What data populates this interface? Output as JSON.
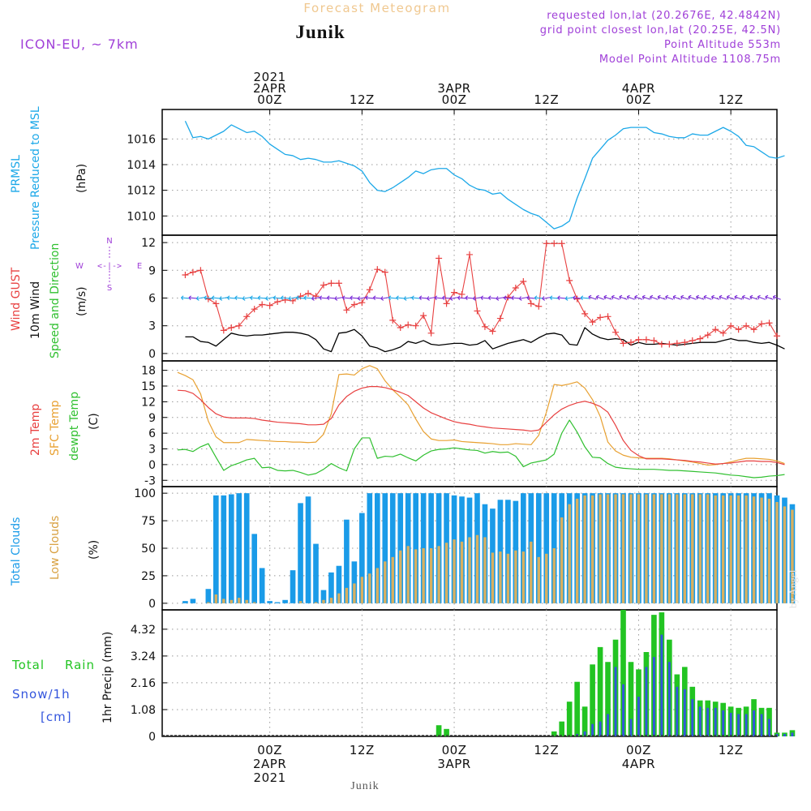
{
  "header": {
    "title": "Forecast Meteogram",
    "location": "Junik",
    "model": "ICON-EU, ~ 7km",
    "requested": "requested lon,lat (20.2676E, 42.4842N)",
    "gridpoint": "grid point closest lon,lat (20.25E, 42.5N)",
    "point_alt": "Point Altitude 553m",
    "model_alt": "Model Point Altitude 1108.75m"
  },
  "footer": {
    "location": "Junik",
    "credit": "by Angel"
  },
  "time_axis": {
    "top": [
      {
        "hour": 24,
        "lines": [
          "2021",
          "2APR",
          "00Z"
        ]
      },
      {
        "hour": 36,
        "lines": [
          "12Z"
        ]
      },
      {
        "hour": 48,
        "lines": [
          "3APR",
          "00Z"
        ]
      },
      {
        "hour": 60,
        "lines": [
          "12Z"
        ]
      },
      {
        "hour": 72,
        "lines": [
          "4APR",
          "00Z"
        ]
      },
      {
        "hour": 84,
        "lines": [
          "12Z"
        ]
      }
    ],
    "bottom": [
      {
        "hour": 24,
        "lines": [
          "00Z",
          "2APR",
          "2021"
        ]
      },
      {
        "hour": 36,
        "lines": [
          "12Z"
        ]
      },
      {
        "hour": 48,
        "lines": [
          "00Z",
          "3APR"
        ]
      },
      {
        "hour": 60,
        "lines": [
          "12Z"
        ]
      },
      {
        "hour": 72,
        "lines": [
          "00Z",
          "4APR"
        ]
      },
      {
        "hour": 84,
        "lines": [
          "12Z"
        ]
      }
    ]
  },
  "panels": {
    "pressure": {
      "labels": [
        "PRMSL",
        "Pressure Reduced to MSL",
        "(hPa)"
      ]
    },
    "wind": {
      "labels": [
        "Wind GUST",
        "10m Wind",
        "Speed and Direction",
        "(m/s)"
      ],
      "compass": [
        "N",
        "S",
        "W",
        "E",
        "<-|->"
      ]
    },
    "temp": {
      "labels": [
        "2m Temp",
        "SFC Temp",
        "dewpt Temp",
        "(C)"
      ]
    },
    "clouds": {
      "labels": [
        "Total Clouds",
        "Low Clouds",
        "(%)"
      ]
    },
    "precip": {
      "labels": [
        "Total",
        "Rain",
        "Snow/1h",
        "[cm]",
        "1hr Precip (mm)"
      ]
    }
  },
  "colors": {
    "pressure": "#1ca8e8",
    "gust": "#e84040",
    "wind": "#000000",
    "wind_dir": "#7a2ad8",
    "wind_dir2": "#1ca8e8",
    "temp2m": "#e84040",
    "sfc": "#e8a030",
    "dew": "#30c030",
    "total_cloud": "#1a9be8",
    "low_cloud": "#d8b060",
    "rain": "#22c422",
    "snow": "#3355dd",
    "title": "#f0c890",
    "purple": "#a040d8"
  },
  "chart_data": [
    {
      "type": "line",
      "title": "PRMSL Pressure Reduced to MSL",
      "ylabel": "hPa",
      "ylim": [
        1008.5,
        1018.3
      ],
      "yticks": [
        1010,
        1012,
        1014,
        1016
      ],
      "x_start": 13,
      "x_step": 1,
      "series": [
        {
          "name": "PRMSL",
          "values": [
            1017.4,
            1016.1,
            1016.2,
            1016.0,
            1016.3,
            1016.6,
            1017.1,
            1016.8,
            1016.5,
            1016.6,
            1016.2,
            1015.6,
            1015.2,
            1014.8,
            1014.7,
            1014.4,
            1014.5,
            1014.4,
            1014.2,
            1014.2,
            1014.3,
            1014.1,
            1013.9,
            1013.5,
            1012.6,
            1012.0,
            1011.9,
            1012.2,
            1012.6,
            1013.0,
            1013.5,
            1013.3,
            1013.6,
            1013.7,
            1013.7,
            1013.2,
            1012.9,
            1012.4,
            1012.1,
            1012.0,
            1011.7,
            1011.8,
            1011.3,
            1010.9,
            1010.5,
            1010.2,
            1010.0,
            1009.5,
            1009.0,
            1009.2,
            1009.6,
            1011.4,
            1012.9,
            1014.5,
            1015.2,
            1015.9,
            1016.3,
            1016.8,
            1016.9,
            1016.9,
            1016.9,
            1016.5,
            1016.4,
            1016.2,
            1016.1,
            1016.1,
            1016.4,
            1016.3,
            1016.3,
            1016.6,
            1016.9,
            1016.6,
            1016.2,
            1015.5,
            1015.4,
            1015.0,
            1014.6,
            1014.5,
            1014.7
          ]
        }
      ]
    },
    {
      "type": "line",
      "title": "Wind GUST / 10m Wind",
      "ylabel": "m/s",
      "ylim": [
        -0.8,
        12.8
      ],
      "yticks": [
        0,
        3,
        6,
        9,
        12
      ],
      "x_start": 13,
      "x_step": 1,
      "series": [
        {
          "name": "Wind GUST",
          "values": [
            8.5,
            8.8,
            9.0,
            5.9,
            5.4,
            2.5,
            2.8,
            3.0,
            4.0,
            4.8,
            5.3,
            5.2,
            5.6,
            5.8,
            5.7,
            6.2,
            6.5,
            6.2,
            7.4,
            7.6,
            7.6,
            4.7,
            5.3,
            5.5,
            6.9,
            9.1,
            8.8,
            3.6,
            2.8,
            3.1,
            3.0,
            4.1,
            2.2,
            10.3,
            5.4,
            6.6,
            6.4,
            10.7,
            4.6,
            2.9,
            2.4,
            3.8,
            6.1,
            7.1,
            7.8,
            5.4,
            5.1,
            11.9,
            11.9,
            11.9,
            7.9,
            5.9,
            4.3,
            3.4,
            3.9,
            4.0,
            2.3,
            1.1,
            1.2,
            1.5,
            1.5,
            1.4,
            1.0,
            1.0,
            1.1,
            1.2,
            1.4,
            1.6,
            2.0,
            2.6,
            2.2,
            3.0,
            2.6,
            3.0,
            2.6,
            3.2,
            3.3,
            1.9
          ]
        },
        {
          "name": "10m Wind",
          "values": [
            1.8,
            1.8,
            1.3,
            1.2,
            0.8,
            1.5,
            2.2,
            2.0,
            1.9,
            2.0,
            2.0,
            2.1,
            2.2,
            2.3,
            2.3,
            2.2,
            2.0,
            1.5,
            0.5,
            0.2,
            2.2,
            2.3,
            2.6,
            1.9,
            0.8,
            0.6,
            0.2,
            0.4,
            0.7,
            1.3,
            1.1,
            1.4,
            1.0,
            0.9,
            1.0,
            1.1,
            1.1,
            0.9,
            1.0,
            1.4,
            0.5,
            0.8,
            1.1,
            1.3,
            1.5,
            1.2,
            1.7,
            2.1,
            2.2,
            2.0,
            1.0,
            0.9,
            2.8,
            2.1,
            1.7,
            1.5,
            1.6,
            1.5,
            0.9,
            1.2,
            1.0,
            1.0,
            1.1,
            1.0,
            0.9,
            1.0,
            1.1,
            1.2,
            1.2,
            1.2,
            1.4,
            1.6,
            1.4,
            1.4,
            1.2,
            1.1,
            1.2,
            0.9,
            0.5
          ]
        }
      ]
    },
    {
      "type": "line",
      "title": "2m Temp / SFC Temp / dewpt Temp",
      "ylabel": "C",
      "ylim": [
        -4.2,
        19.8
      ],
      "yticks": [
        -3,
        0,
        3,
        6,
        9,
        12,
        15,
        18
      ],
      "x_start": 12,
      "x_step": 1,
      "series": [
        {
          "name": "2m Temp",
          "values": [
            14.2,
            14.1,
            13.6,
            12.4,
            10.9,
            9.7,
            9.1,
            8.9,
            8.9,
            8.9,
            8.8,
            8.5,
            8.3,
            8.1,
            8.0,
            7.9,
            7.8,
            7.6,
            7.6,
            7.7,
            8.8,
            11.4,
            13.0,
            14.0,
            14.6,
            14.9,
            14.9,
            14.7,
            14.3,
            13.8,
            13.2,
            12.0,
            10.8,
            9.9,
            9.3,
            8.7,
            8.2,
            7.9,
            7.7,
            7.4,
            7.2,
            7.0,
            6.9,
            6.8,
            6.7,
            6.6,
            6.4,
            6.6,
            8.1,
            9.5,
            10.6,
            11.3,
            11.8,
            12.1,
            11.7,
            11.1,
            10.0,
            7.5,
            4.6,
            2.7,
            1.7,
            1.1,
            1.1,
            1.1,
            1.0,
            0.9,
            0.8,
            0.6,
            0.5,
            0.3,
            0.1,
            0.2,
            0.3,
            0.5,
            0.7,
            0.7,
            0.6,
            0.6,
            0.4,
            0.0
          ]
        },
        {
          "name": "SFC Temp",
          "values": [
            17.6,
            17.0,
            16.2,
            13.5,
            8.3,
            5.3,
            4.2,
            4.2,
            4.2,
            4.8,
            4.7,
            4.6,
            4.5,
            4.4,
            4.4,
            4.3,
            4.3,
            4.2,
            4.3,
            5.8,
            9.7,
            17.2,
            17.3,
            17.1,
            18.3,
            18.9,
            18.3,
            16.0,
            14.3,
            12.9,
            11.4,
            8.7,
            6.3,
            4.9,
            4.6,
            4.6,
            4.7,
            4.4,
            4.3,
            4.2,
            4.1,
            4.0,
            3.8,
            3.8,
            4.0,
            3.9,
            3.8,
            5.6,
            10.0,
            15.3,
            15.1,
            15.4,
            15.8,
            14.6,
            12.4,
            9.2,
            4.3,
            2.6,
            1.8,
            1.4,
            1.3,
            1.2,
            1.2,
            1.2,
            1.1,
            0.9,
            0.7,
            0.5,
            0.2,
            -0.1,
            0.0,
            0.2,
            0.5,
            0.9,
            1.2,
            1.2,
            1.1,
            1.0,
            0.7,
            0.2
          ]
        },
        {
          "name": "dewpt Temp",
          "values": [
            2.8,
            2.9,
            2.5,
            3.4,
            4.0,
            1.4,
            -1.1,
            -0.2,
            0.3,
            0.9,
            1.2,
            -0.6,
            -0.5,
            -1.1,
            -1.2,
            -1.1,
            -1.5,
            -2.0,
            -1.7,
            -0.9,
            0.2,
            -0.6,
            -1.2,
            3.0,
            5.1,
            5.1,
            1.2,
            1.6,
            1.5,
            2.0,
            1.3,
            0.7,
            1.8,
            2.6,
            2.9,
            3.0,
            3.2,
            3.0,
            2.8,
            2.7,
            2.2,
            2.5,
            2.3,
            2.4,
            1.6,
            -0.4,
            0.3,
            0.6,
            0.9,
            2.0,
            6.0,
            8.5,
            6.2,
            3.4,
            1.4,
            1.3,
            0.2,
            -0.5,
            -0.7,
            -0.8,
            -0.9,
            -0.9,
            -0.9,
            -1.0,
            -1.1,
            -1.1,
            -1.2,
            -1.3,
            -1.4,
            -1.5,
            -1.6,
            -1.8,
            -2.0,
            -2.1,
            -2.3,
            -2.5,
            -2.4,
            -2.2,
            -2.1,
            -1.9
          ]
        }
      ]
    },
    {
      "type": "bar",
      "title": "Total Clouds / Low Clouds",
      "ylabel": "%",
      "ylim": [
        -6,
        106
      ],
      "yticks": [
        0,
        25,
        50,
        75,
        100
      ],
      "x_start": 13,
      "x_step": 1,
      "series": [
        {
          "name": "Total Clouds",
          "values": [
            2,
            4,
            0,
            13,
            98,
            98,
            99,
            100,
            100,
            63,
            32,
            2,
            1,
            3,
            30,
            91,
            97,
            54,
            12,
            28,
            34,
            76,
            38,
            82,
            100,
            100,
            100,
            100,
            100,
            100,
            100,
            100,
            100,
            100,
            100,
            98,
            97,
            96,
            100,
            90,
            86,
            94,
            94,
            93,
            100,
            100,
            100,
            100,
            100,
            100,
            100,
            100,
            100,
            100,
            100,
            100,
            100,
            100,
            100,
            100,
            100,
            100,
            100,
            100,
            100,
            100,
            100,
            100,
            100,
            100,
            100,
            100,
            100,
            100,
            100,
            100,
            100,
            98,
            96,
            90
          ]
        },
        {
          "name": "Low Clouds",
          "values": [
            0,
            0,
            0,
            1,
            8,
            4,
            3,
            5,
            3,
            1,
            0,
            0,
            0,
            0,
            0,
            2,
            0,
            1,
            3,
            5,
            9,
            14,
            18,
            24,
            27,
            32,
            38,
            42,
            48,
            52,
            49,
            50,
            50,
            52,
            55,
            58,
            56,
            60,
            62,
            60,
            46,
            47,
            45,
            48,
            47,
            56,
            42,
            45,
            50,
            78,
            90,
            95,
            98,
            98,
            99,
            99,
            99,
            99,
            99,
            99,
            99,
            99,
            99,
            99,
            99,
            99,
            99,
            99,
            99,
            98,
            98,
            98,
            98,
            98,
            97,
            96,
            95,
            92,
            88,
            85
          ]
        }
      ]
    },
    {
      "type": "bar",
      "title": "1hr Precip",
      "ylabel": "1hr Precip (mm)",
      "ylim": [
        0,
        5.1
      ],
      "yticks": [
        0,
        1.08,
        2.16,
        3.24,
        4.32
      ],
      "x_start": 13,
      "x_step": 1,
      "series": [
        {
          "name": "Total Rain",
          "values": [
            0,
            0,
            0,
            0,
            0,
            0,
            0,
            0,
            0,
            0,
            0,
            0,
            0,
            0,
            0,
            0,
            0,
            0,
            0,
            0,
            0,
            0,
            0,
            0,
            0,
            0,
            0,
            0,
            0,
            0,
            0,
            0,
            0,
            0.45,
            0.3,
            0,
            0,
            0,
            0,
            0,
            0,
            0,
            0,
            0,
            0,
            0,
            0,
            0,
            0.2,
            0.6,
            1.4,
            2.2,
            1.2,
            2.9,
            3.6,
            3.0,
            3.9,
            5.1,
            3.0,
            2.7,
            3.4,
            4.9,
            5.0,
            3.9,
            2.5,
            2.8,
            2.0,
            1.45,
            1.45,
            1.4,
            1.35,
            1.2,
            1.15,
            1.2,
            1.5,
            1.15,
            1.15,
            0.15,
            0.15,
            0.25
          ]
        },
        {
          "name": "Snow/1h",
          "values": [
            0,
            0,
            0,
            0,
            0,
            0,
            0,
            0,
            0,
            0,
            0,
            0,
            0,
            0,
            0,
            0,
            0,
            0,
            0,
            0,
            0,
            0,
            0,
            0,
            0,
            0,
            0,
            0,
            0,
            0,
            0,
            0,
            0,
            0,
            0,
            0,
            0,
            0,
            0,
            0,
            0,
            0,
            0,
            0,
            0,
            0,
            0,
            0,
            0,
            0,
            0,
            0.1,
            0.2,
            0.5,
            0.6,
            0.9,
            2.8,
            2.1,
            0.7,
            1.6,
            2.8,
            3.2,
            4.1,
            3.0,
            2.0,
            1.9,
            1.5,
            1.2,
            1.15,
            1.15,
            1.05,
            0.95,
            0.9,
            0.9,
            1.05,
            0.9,
            0.7,
            0.1,
            0.1,
            0.15
          ]
        }
      ]
    }
  ]
}
